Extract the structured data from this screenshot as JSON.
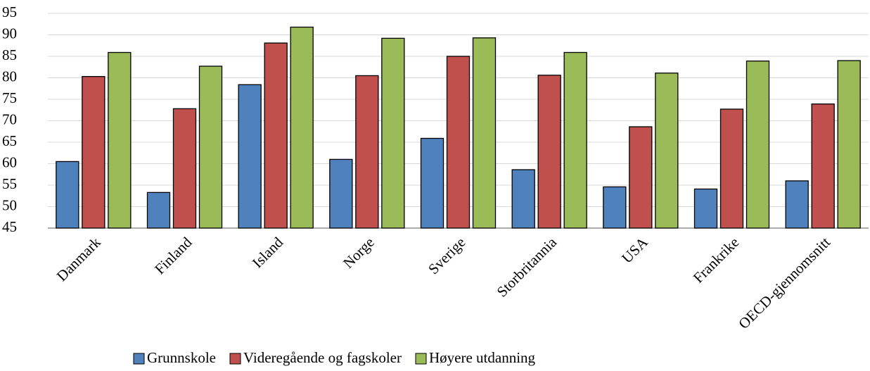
{
  "chart_data": {
    "type": "bar",
    "categories": [
      "Danmark",
      "Finland",
      "Island",
      "Norge",
      "Sverige",
      "Storbritannia",
      "USA",
      "Frankrike",
      "OECD-gjennomsnitt"
    ],
    "series": [
      {
        "name": "Grunnskole",
        "color": "#4f81bd",
        "values": [
          60.5,
          53.3,
          78.4,
          61,
          65.9,
          58.6,
          54.6,
          54.1,
          56
        ]
      },
      {
        "name": "Videregående og fagskoler",
        "color": "#c0504d",
        "values": [
          80.3,
          72.8,
          88.1,
          80.5,
          85,
          80.6,
          68.6,
          72.7,
          73.9
        ]
      },
      {
        "name": "Høyere utdanning",
        "color": "#9bbb59",
        "values": [
          85.9,
          82.7,
          91.8,
          89.2,
          89.3,
          85.9,
          81.1,
          83.9,
          84
        ]
      }
    ],
    "ylim": [
      45,
      95
    ],
    "yticks": [
      45,
      50,
      55,
      60,
      65,
      70,
      75,
      80,
      85,
      90,
      95
    ],
    "grid": true
  }
}
